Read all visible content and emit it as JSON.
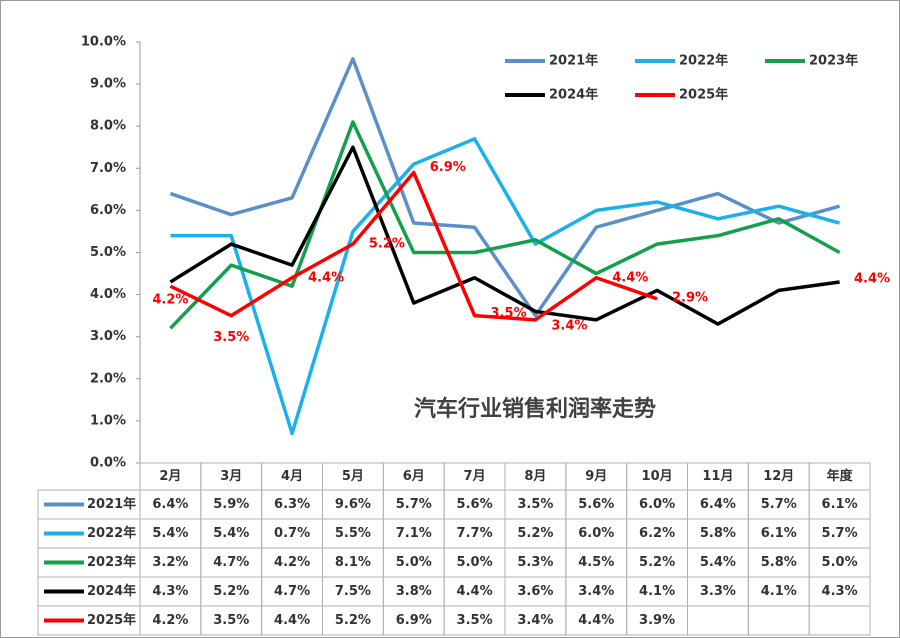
{
  "chart_data": {
    "type": "line",
    "title": "汽车行业销售利润率走势",
    "categories": [
      "2月",
      "3月",
      "4月",
      "5月",
      "6月",
      "7月",
      "8月",
      "9月",
      "10月",
      "11月",
      "12月",
      "年度"
    ],
    "ylim": [
      0,
      10
    ],
    "yticks": [
      {
        "value": 0,
        "label": "0.0%"
      },
      {
        "value": 1,
        "label": "1.0%"
      },
      {
        "value": 2,
        "label": "2.0%"
      },
      {
        "value": 3,
        "label": "3.0%"
      },
      {
        "value": 4,
        "label": "4.0%"
      },
      {
        "value": 5,
        "label": "5.0%"
      },
      {
        "value": 6,
        "label": "6.0%"
      },
      {
        "value": 7,
        "label": "7.0%"
      },
      {
        "value": 8,
        "label": "8.0%"
      },
      {
        "value": 9,
        "label": "9.0%"
      },
      {
        "value": 10,
        "label": "10.0%"
      }
    ],
    "grid": false,
    "series": [
      {
        "name": "2021年",
        "color": "#5b8fc9",
        "values": [
          6.4,
          5.9,
          6.3,
          9.6,
          5.7,
          5.6,
          3.5,
          5.6,
          6.0,
          6.4,
          5.7,
          6.1
        ],
        "value_labels": [
          "6.4%",
          "5.9%",
          "6.3%",
          "9.6%",
          "5.7%",
          "5.6%",
          "3.5%",
          "5.6%",
          "6.0%",
          "6.4%",
          "5.7%",
          "6.1%"
        ]
      },
      {
        "name": "2022年",
        "color": "#1ab0ea",
        "values": [
          5.4,
          5.4,
          0.7,
          5.5,
          7.1,
          7.7,
          5.2,
          6.0,
          6.2,
          5.8,
          6.1,
          5.7
        ],
        "value_labels": [
          "5.4%",
          "5.4%",
          "0.7%",
          "5.5%",
          "7.1%",
          "7.7%",
          "5.2%",
          "6.0%",
          "6.2%",
          "5.8%",
          "6.1%",
          "5.7%"
        ]
      },
      {
        "name": "2023年",
        "color": "#12a04a",
        "values": [
          3.2,
          4.7,
          4.2,
          8.1,
          5.0,
          5.0,
          5.3,
          4.5,
          5.2,
          5.4,
          5.8,
          5.0
        ],
        "value_labels": [
          "3.2%",
          "4.7%",
          "4.2%",
          "8.1%",
          "5.0%",
          "5.0%",
          "5.3%",
          "4.5%",
          "5.2%",
          "5.4%",
          "5.8%",
          "5.0%"
        ]
      },
      {
        "name": "2024年",
        "color": "#000000",
        "values": [
          4.3,
          5.2,
          4.7,
          7.5,
          3.8,
          4.4,
          3.6,
          3.4,
          4.1,
          3.3,
          4.1,
          4.3
        ],
        "value_labels": [
          "4.3%",
          "5.2%",
          "4.7%",
          "7.5%",
          "3.8%",
          "4.4%",
          "3.6%",
          "3.4%",
          "4.1%",
          "3.3%",
          "4.1%",
          "4.3%"
        ]
      },
      {
        "name": "2025年",
        "color": "#ff0000",
        "values": [
          4.2,
          3.5,
          4.4,
          5.2,
          6.9,
          3.5,
          3.4,
          4.4,
          3.9,
          null,
          null,
          null
        ],
        "value_labels": [
          "4.2%",
          "3.5%",
          "4.4%",
          "5.2%",
          "6.9%",
          "3.5%",
          "3.4%",
          "4.4%",
          "3.9%",
          null,
          null,
          null
        ]
      }
    ],
    "annotations": [
      "2.9%",
      "4.4%"
    ]
  }
}
